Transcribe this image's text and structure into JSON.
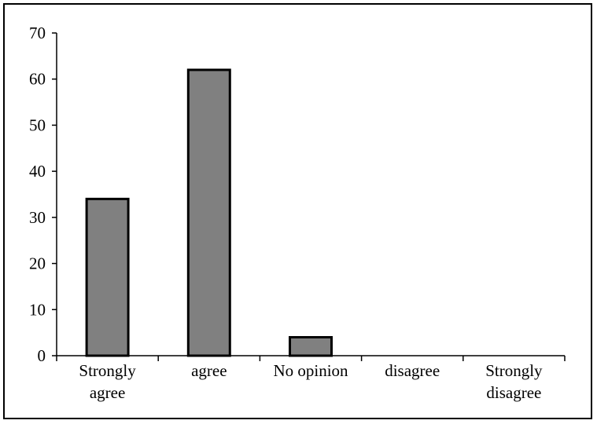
{
  "chart_data": {
    "type": "bar",
    "categories": [
      [
        "Strongly",
        "agree"
      ],
      [
        "agree"
      ],
      [
        "No opinion"
      ],
      [
        "disagree"
      ],
      [
        "Strongly",
        "disagree"
      ]
    ],
    "values": [
      34,
      62,
      4,
      0,
      0
    ],
    "title": "",
    "xlabel": "",
    "ylabel": "",
    "ylim": [
      0,
      70
    ],
    "yticks": [
      "0",
      "10",
      "20",
      "30",
      "40",
      "50",
      "60",
      "70"
    ],
    "grid": false,
    "legend": "none",
    "bar_color": "#808080",
    "bar_edge_color": "#000000"
  }
}
